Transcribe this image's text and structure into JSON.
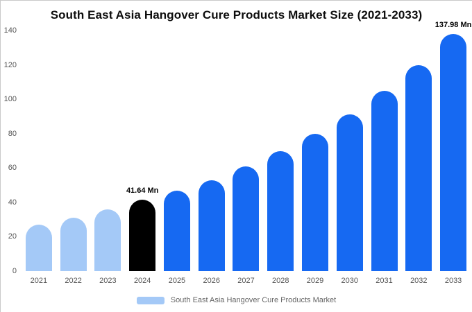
{
  "title": "South East Asia Hangover Cure Products Market Size (2021-2033)",
  "chart_data": {
    "type": "bar",
    "title": "South East Asia Hangover Cure Products Market Size (2021-2033)",
    "categories": [
      "2021",
      "2022",
      "2023",
      "2024",
      "2025",
      "2026",
      "2027",
      "2028",
      "2029",
      "2030",
      "2031",
      "2032",
      "2033"
    ],
    "values": [
      27,
      31,
      36,
      41.64,
      47,
      53,
      61,
      70,
      80,
      91,
      105,
      120,
      137.98
    ],
    "series_name": "South East Asia Hangover Cure Products Market",
    "ylim": [
      0,
      140
    ],
    "yticks": [
      0,
      20,
      40,
      60,
      80,
      100,
      120,
      140
    ],
    "xlabel": "",
    "ylabel": "",
    "grid": false,
    "legend_position": "bottom",
    "annotations": [
      {
        "category": "2024",
        "text": "41.64 Mn"
      },
      {
        "category": "2033",
        "text": "137.98 Mn"
      }
    ],
    "colors": {
      "default": "#1669f2",
      "light": "#a4c9f7",
      "highlight": "#000000"
    },
    "bar_colors": [
      "light",
      "light",
      "light",
      "highlight",
      "default",
      "default",
      "default",
      "default",
      "default",
      "default",
      "default",
      "default",
      "default"
    ]
  },
  "legend": {
    "label": "South East Asia Hangover Cure Products Market",
    "swatch_color": "#a4c9f7"
  }
}
